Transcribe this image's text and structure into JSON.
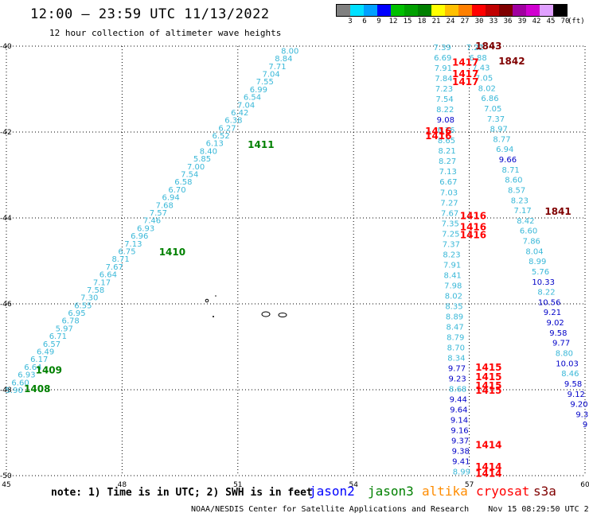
{
  "title": "12:00 – 23:59 UTC 11/13/2022",
  "subtitle": "12 hour collection of altimeter wave heights",
  "colorbar": {
    "colors": [
      "#808080",
      "#00e0ff",
      "#00a0ff",
      "#0000ff",
      "#00c000",
      "#00a000",
      "#008000",
      "#ffff00",
      "#ffc000",
      "#ff8000",
      "#ff0000",
      "#c00000",
      "#800000",
      "#a000a0",
      "#d000d0",
      "#e0a0ff",
      "#000000"
    ],
    "ticks": [
      "3",
      "6",
      "9",
      "12",
      "15",
      "18",
      "21",
      "24",
      "27",
      "30",
      "33",
      "36",
      "39",
      "42",
      "45",
      "70"
    ],
    "unit": "(ft)"
  },
  "axes": {
    "x_ticks": [
      "45",
      "48",
      "51",
      "54",
      "57",
      "60"
    ],
    "y_ticks": [
      "-40",
      "-42",
      "-44",
      "-46",
      "-48",
      "-50"
    ],
    "xlim": [
      45,
      60
    ],
    "ylim": [
      -50,
      -40
    ]
  },
  "chart_data": {
    "type": "scatter",
    "tracks": [
      {
        "name": "track-1408-1411",
        "color": "#3ab8d8",
        "start": [
          52.35,
          -40.1
        ],
        "end": [
          45.2,
          -48.0
        ],
        "values": [
          "8.00",
          "8.84",
          "7.71",
          "7.04",
          "7.55",
          "6.99",
          "6.54",
          "7.04",
          "6.42",
          "6.38",
          "6.27",
          "6.52",
          "6.13",
          "8.40",
          "5.85",
          "7.00",
          "7.54",
          "6.58",
          "6.70",
          "6.94",
          "7.68",
          "7.57",
          "7.46",
          "6.93",
          "6.96",
          "7.13",
          "6.75",
          "8.71",
          "7.67",
          "6.64",
          "7.17",
          "7.58",
          "7.30",
          "6.55",
          "6.95",
          "6.78",
          "5.97",
          "6.71",
          "6.57",
          "6.49",
          "6.17",
          "6.64",
          "6.93",
          "6.60",
          "5.90"
        ]
      },
      {
        "name": "track-1417-1416",
        "color": "#3ab8d8",
        "start": [
          56.3,
          -40.02
        ],
        "end": [
          56.8,
          -49.9
        ],
        "values": [
          "7.39",
          "6.69",
          "7.91",
          "7.84",
          "7.23",
          "7.54",
          "8.22",
          "9.08",
          "8.76",
          "8.65",
          "8.21",
          "8.27",
          "7.13",
          "6.67",
          "7.03",
          "7.27",
          "7.67",
          "7.35",
          "7.25",
          "7.37",
          "8.23",
          "7.91",
          "8.41",
          "7.98",
          "8.02",
          "8.35",
          "8.89",
          "8.47",
          "8.79",
          "8.70",
          "8.34",
          "9.77",
          "9.23",
          "8.68",
          "9.44",
          "9.64",
          "9.14",
          "9.16",
          "9.37",
          "9.38",
          "9.41",
          "8.99"
        ]
      },
      {
        "name": "track-1843-1841",
        "color": "#3ab8d8",
        "start": [
          57.15,
          -40.02
        ],
        "end": [
          60.0,
          -48.8
        ],
        "values": [
          "7.22",
          "6.88",
          "7.43",
          "7.05",
          "8.02",
          "6.86",
          "7.05",
          "7.37",
          "8.97",
          "8.77",
          "6.94",
          "9.66",
          "8.71",
          "8.60",
          "8.57",
          "8.23",
          "7.17",
          "8.42",
          "6.60",
          "7.86",
          "8.04",
          "8.99",
          "5.76",
          "10.33",
          "8.22",
          "10.56",
          "9.21",
          "9.02",
          "9.58",
          "9.77",
          "8.80",
          "10.03",
          "8.46",
          "9.58",
          "9.12",
          "9.20",
          "9.3",
          "9"
        ]
      }
    ],
    "pass_labels": [
      {
        "text": "1843",
        "color": "#800000",
        "lon": 57.5,
        "lat": -40.0
      },
      {
        "text": "1842",
        "color": "#800000",
        "lon": 58.1,
        "lat": -40.35
      },
      {
        "text": "1417",
        "color": "#ff0000",
        "lon": 56.9,
        "lat": -40.38
      },
      {
        "text": "1417",
        "color": "#ff0000",
        "lon": 56.9,
        "lat": -40.65
      },
      {
        "text": "1417",
        "color": "#ff0000",
        "lon": 56.9,
        "lat": -40.83
      },
      {
        "text": "1411",
        "color": "#008000",
        "lon": 51.6,
        "lat": -42.3
      },
      {
        "text": "1416",
        "color": "#ff0000",
        "lon": 56.2,
        "lat": -41.98
      },
      {
        "text": "1416",
        "color": "#ff0000",
        "lon": 56.2,
        "lat": -42.09
      },
      {
        "text": "1841",
        "color": "#800000",
        "lon": 59.3,
        "lat": -43.85
      },
      {
        "text": "1416",
        "color": "#ff0000",
        "lon": 57.1,
        "lat": -43.95
      },
      {
        "text": "1416",
        "color": "#ff0000",
        "lon": 57.1,
        "lat": -44.21
      },
      {
        "text": "1416",
        "color": "#ff0000",
        "lon": 57.1,
        "lat": -44.4
      },
      {
        "text": "1410",
        "color": "#008000",
        "lon": 49.3,
        "lat": -44.8
      },
      {
        "text": "1409",
        "color": "#008000",
        "lon": 46.1,
        "lat": -47.55
      },
      {
        "text": "1408",
        "color": "#008000",
        "lon": 45.8,
        "lat": -47.98
      },
      {
        "text": "1415",
        "color": "#ff0000",
        "lon": 57.5,
        "lat": -47.48
      },
      {
        "text": "1415",
        "color": "#ff0000",
        "lon": 57.5,
        "lat": -47.7
      },
      {
        "text": "1415",
        "color": "#ff0000",
        "lon": 57.5,
        "lat": -47.91
      },
      {
        "text": "1415",
        "color": "#ff0000",
        "lon": 57.5,
        "lat": -48.02
      },
      {
        "text": "1414",
        "color": "#ff0000",
        "lon": 57.5,
        "lat": -49.29
      },
      {
        "text": "1414",
        "color": "#ff0000",
        "lon": 57.5,
        "lat": -49.8
      },
      {
        "text": "1414",
        "color": "#ff0000",
        "lon": 57.5,
        "lat": -49.95
      }
    ]
  },
  "note": "note: 1) Time is in UTC; 2) SWH is in feet",
  "satellites": [
    {
      "name": "jason2",
      "color": "#0000ff"
    },
    {
      "name": "jason3",
      "color": "#008000"
    },
    {
      "name": "altika",
      "color": "#ff8c00"
    },
    {
      "name": "cryosat",
      "color": "#ff0000"
    },
    {
      "name": "s3a",
      "color": "#800000"
    }
  ],
  "credit": "NOAA/NESDIS Center for Satellite Applications and Research    Nov 15 08:29:50 UTC 2022"
}
